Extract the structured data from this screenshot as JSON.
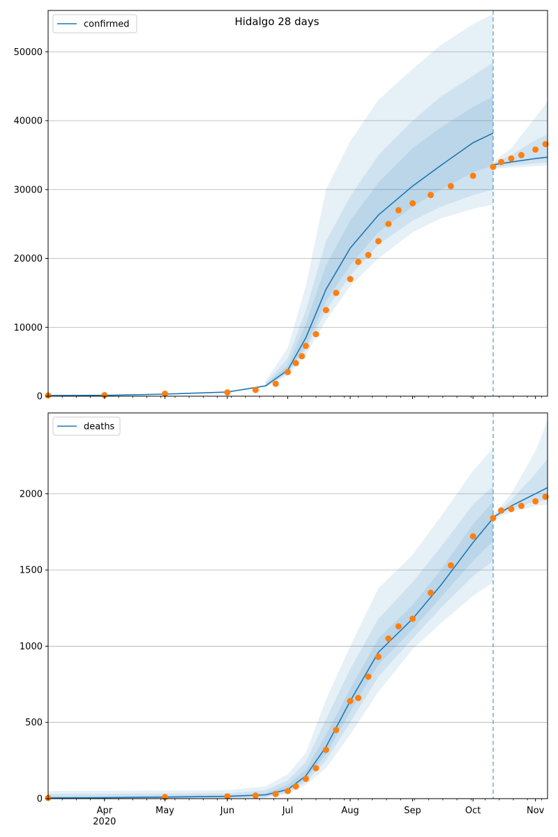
{
  "figure": {
    "title": "Hidalgo 28 days"
  },
  "colors": {
    "model": "#1f77b4",
    "observed": "#ff7f0e",
    "grid": "#b0b0b0",
    "band": "#1f77b4"
  },
  "month_labels": [
    {
      "label": "Apr",
      "date": "2020-04-01",
      "sub": "2020"
    },
    {
      "label": "May",
      "date": "2020-05-01"
    },
    {
      "label": "Jun",
      "date": "2020-06-01"
    },
    {
      "label": "Jul",
      "date": "2020-07-01"
    },
    {
      "label": "Aug",
      "date": "2020-08-01"
    },
    {
      "label": "Sep",
      "date": "2020-09-01"
    },
    {
      "label": "Oct",
      "date": "2020-10-01"
    },
    {
      "label": "Nov",
      "date": "2020-11-01"
    }
  ],
  "chart_data": [
    {
      "type": "line",
      "id": "confirmed",
      "legend": "confirmed",
      "legend_loc": "upper-left",
      "grid": "y",
      "xlim": [
        "2020-03-04",
        "2020-11-07"
      ],
      "ylim": [
        0,
        56000
      ],
      "yticks": [
        0,
        10000,
        20000,
        30000,
        40000,
        50000
      ],
      "forecast_start": "2020-10-11",
      "model": {
        "x": [
          "2020-03-04",
          "2020-04-01",
          "2020-05-01",
          "2020-06-01",
          "2020-06-20",
          "2020-07-01",
          "2020-07-10",
          "2020-07-20",
          "2020-08-01",
          "2020-08-15",
          "2020-09-01",
          "2020-09-15",
          "2020-10-01",
          "2020-10-11"
        ],
        "y": [
          100,
          120,
          300,
          600,
          1500,
          3800,
          8500,
          15500,
          21500,
          26300,
          30500,
          33500,
          36800,
          38200
        ]
      },
      "model_forecast": {
        "x": [
          "2020-10-11",
          "2020-10-20",
          "2020-11-01",
          "2020-11-07"
        ],
        "y": [
          33600,
          34000,
          34500,
          34700
        ]
      },
      "bands": [
        {
          "x": [
            "2020-06-20",
            "2020-07-01",
            "2020-07-10",
            "2020-07-20",
            "2020-08-01",
            "2020-08-15",
            "2020-09-01",
            "2020-09-15",
            "2020-10-01",
            "2020-10-11"
          ],
          "lower": [
            1300,
            3000,
            6000,
            11000,
            16000,
            20000,
            23800,
            25800,
            27200,
            27800
          ],
          "upper": [
            2200,
            7000,
            16000,
            30000,
            37000,
            43000,
            47500,
            51000,
            54000,
            55500
          ]
        },
        {
          "x": [
            "2020-06-20",
            "2020-07-01",
            "2020-07-10",
            "2020-07-20",
            "2020-08-01",
            "2020-08-15",
            "2020-09-01",
            "2020-09-15",
            "2020-10-01",
            "2020-10-11"
          ],
          "lower": [
            1400,
            3300,
            6800,
            12500,
            17500,
            22000,
            25500,
            27500,
            29200,
            30000
          ],
          "upper": [
            1900,
            5500,
            12500,
            22500,
            29000,
            35000,
            40000,
            43500,
            46500,
            48500
          ]
        },
        {
          "x": [
            "2020-06-20",
            "2020-07-01",
            "2020-07-10",
            "2020-07-20",
            "2020-08-01",
            "2020-08-15",
            "2020-09-01",
            "2020-09-15",
            "2020-10-01",
            "2020-10-11"
          ],
          "lower": [
            1450,
            3500,
            7300,
            13800,
            19000,
            23800,
            27500,
            30000,
            32500,
            33500
          ],
          "upper": [
            1700,
            4500,
            10500,
            19000,
            25500,
            31000,
            36000,
            39000,
            42000,
            43500
          ]
        }
      ],
      "forecast_bands": [
        {
          "x": [
            "2020-10-11",
            "2020-10-20",
            "2020-11-01",
            "2020-11-07"
          ],
          "lower": [
            33000,
            33200,
            33400,
            33500
          ],
          "upper": [
            34000,
            36000,
            40500,
            42800
          ]
        },
        {
          "x": [
            "2020-10-11",
            "2020-10-20",
            "2020-11-01",
            "2020-11-07"
          ],
          "lower": [
            33200,
            33500,
            33800,
            33900
          ],
          "upper": [
            33800,
            35000,
            37200,
            38000
          ]
        }
      ],
      "observed": {
        "x": [
          "2020-03-04",
          "2020-04-01",
          "2020-05-01",
          "2020-06-01",
          "2020-06-15",
          "2020-06-25",
          "2020-07-01",
          "2020-07-05",
          "2020-07-08",
          "2020-07-10",
          "2020-07-15",
          "2020-07-20",
          "2020-07-25",
          "2020-08-01",
          "2020-08-05",
          "2020-08-10",
          "2020-08-15",
          "2020-08-20",
          "2020-08-25",
          "2020-09-01",
          "2020-09-10",
          "2020-09-20",
          "2020-10-01",
          "2020-10-11",
          "2020-10-15",
          "2020-10-20",
          "2020-10-25",
          "2020-11-01",
          "2020-11-06"
        ],
        "y": [
          100,
          150,
          350,
          550,
          900,
          1800,
          3500,
          4800,
          5800,
          7300,
          9000,
          12500,
          15000,
          17000,
          19500,
          20500,
          22500,
          25000,
          27000,
          28000,
          29200,
          30500,
          32000,
          33300,
          34000,
          34500,
          35000,
          35800,
          36600
        ]
      }
    },
    {
      "type": "line",
      "id": "deaths",
      "legend": "deaths",
      "legend_loc": "upper-left",
      "grid": "y",
      "xlim": [
        "2020-03-04",
        "2020-11-07"
      ],
      "ylim": [
        0,
        2530
      ],
      "yticks": [
        0,
        500,
        1000,
        1500,
        2000
      ],
      "forecast_start": "2020-10-11",
      "model": {
        "x": [
          "2020-03-04",
          "2020-04-01",
          "2020-05-01",
          "2020-06-01",
          "2020-06-20",
          "2020-07-01",
          "2020-07-10",
          "2020-07-20",
          "2020-08-01",
          "2020-08-15",
          "2020-09-01",
          "2020-09-15",
          "2020-10-01",
          "2020-10-11"
        ],
        "y": [
          5,
          6,
          10,
          15,
          25,
          60,
          150,
          340,
          640,
          960,
          1180,
          1400,
          1680,
          1840
        ]
      },
      "model_forecast": {
        "x": [
          "2020-10-11",
          "2020-10-20",
          "2020-11-01",
          "2020-11-07"
        ],
        "y": [
          1845,
          1920,
          2000,
          2040
        ]
      },
      "bands": [
        {
          "x": [
            "2020-03-04",
            "2020-06-01",
            "2020-06-20",
            "2020-07-01",
            "2020-07-10",
            "2020-07-20",
            "2020-08-01",
            "2020-08-15",
            "2020-09-01",
            "2020-09-15",
            "2020-10-01",
            "2020-10-11"
          ],
          "lower": [
            0,
            0,
            5,
            30,
            90,
            200,
            420,
            700,
            980,
            1150,
            1330,
            1420
          ],
          "upper": [
            50,
            55,
            80,
            160,
            300,
            650,
            1000,
            1380,
            1600,
            1850,
            2150,
            2300
          ]
        },
        {
          "x": [
            "2020-03-04",
            "2020-06-01",
            "2020-06-20",
            "2020-07-01",
            "2020-07-10",
            "2020-07-20",
            "2020-08-01",
            "2020-08-15",
            "2020-09-01",
            "2020-09-15",
            "2020-10-01",
            "2020-10-11"
          ],
          "lower": [
            0,
            5,
            10,
            40,
            110,
            250,
            500,
            800,
            1050,
            1250,
            1460,
            1560
          ],
          "upper": [
            30,
            35,
            55,
            120,
            240,
            520,
            850,
            1180,
            1420,
            1650,
            1930,
            2050
          ]
        },
        {
          "x": [
            "2020-03-04",
            "2020-06-01",
            "2020-06-20",
            "2020-07-01",
            "2020-07-10",
            "2020-07-20",
            "2020-08-01",
            "2020-08-15",
            "2020-09-01",
            "2020-09-15",
            "2020-10-01",
            "2020-10-11"
          ],
          "lower": [
            2,
            8,
            15,
            50,
            130,
            290,
            570,
            880,
            1110,
            1320,
            1560,
            1690
          ],
          "upper": [
            15,
            20,
            35,
            90,
            190,
            420,
            720,
            1050,
            1270,
            1500,
            1800,
            1950
          ]
        }
      ],
      "forecast_bands": [
        {
          "x": [
            "2020-10-11",
            "2020-10-20",
            "2020-11-01",
            "2020-11-07"
          ],
          "lower": [
            1830,
            1880,
            1920,
            1930
          ],
          "upper": [
            1860,
            2000,
            2280,
            2480
          ]
        },
        {
          "x": [
            "2020-10-11",
            "2020-10-20",
            "2020-11-01",
            "2020-11-07"
          ],
          "lower": [
            1840,
            1900,
            1950,
            1960
          ],
          "upper": [
            1850,
            1960,
            2130,
            2230
          ]
        }
      ],
      "observed": {
        "x": [
          "2020-03-04",
          "2020-05-01",
          "2020-06-01",
          "2020-06-15",
          "2020-06-25",
          "2020-07-01",
          "2020-07-05",
          "2020-07-10",
          "2020-07-15",
          "2020-07-20",
          "2020-07-25",
          "2020-08-01",
          "2020-08-05",
          "2020-08-10",
          "2020-08-15",
          "2020-08-20",
          "2020-08-25",
          "2020-09-01",
          "2020-09-10",
          "2020-09-20",
          "2020-10-01",
          "2020-10-11",
          "2020-10-15",
          "2020-10-20",
          "2020-10-25",
          "2020-11-01",
          "2020-11-06"
        ],
        "y": [
          5,
          10,
          15,
          20,
          30,
          50,
          80,
          130,
          200,
          320,
          450,
          640,
          660,
          800,
          930,
          1050,
          1130,
          1180,
          1350,
          1530,
          1720,
          1840,
          1890,
          1900,
          1920,
          1950,
          1980
        ]
      }
    }
  ]
}
